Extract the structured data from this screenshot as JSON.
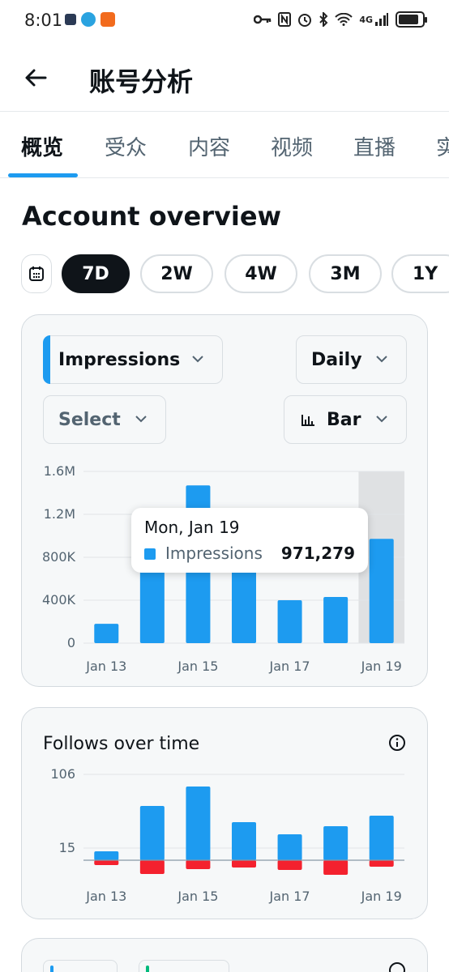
{
  "status_bar": {
    "time": "8:01",
    "network": "4G",
    "battery_level": 0.85
  },
  "header": {
    "title": "账号分析"
  },
  "tabs": [
    {
      "label": "概览",
      "active": true
    },
    {
      "label": "受众",
      "active": false
    },
    {
      "label": "内容",
      "active": false
    },
    {
      "label": "视频",
      "active": false
    },
    {
      "label": "直播",
      "active": false
    },
    {
      "label": "实",
      "active": false
    }
  ],
  "overview": {
    "title": "Account overview",
    "periods": [
      {
        "label": "7D",
        "active": true
      },
      {
        "label": "2W",
        "active": false
      },
      {
        "label": "4W",
        "active": false
      },
      {
        "label": "3M",
        "active": false
      },
      {
        "label": "1Y",
        "active": false
      }
    ],
    "metric_select": "Impressions",
    "interval_select": "Daily",
    "compare_select": "Select",
    "chart_type_select": "Bar",
    "tooltip": {
      "date": "Mon, Jan 19",
      "series": "Impressions",
      "value": "971,279"
    }
  },
  "follows": {
    "title": "Follows over time"
  },
  "colors": {
    "accent": "#1d9bf0",
    "negative": "#f4212e",
    "highlight": "#dfe1e3"
  },
  "chart_data": [
    {
      "type": "bar",
      "title": "",
      "series": [
        {
          "name": "Impressions",
          "values": [
            180000,
            940000,
            1470000,
            1000000,
            400000,
            430000,
            971279
          ]
        }
      ],
      "categories": [
        "Jan 13",
        "Jan 14",
        "Jan 15",
        "Jan 16",
        "Jan 17",
        "Jan 18",
        "Jan 19"
      ],
      "x_tick_labels": [
        "Jan 13",
        "Jan 15",
        "Jan 17",
        "Jan 19"
      ],
      "y_ticks": [
        "0",
        "400K",
        "800K",
        "1.2M",
        "1.6M"
      ],
      "ylim": [
        0,
        1600000
      ],
      "highlighted_category": "Jan 19",
      "grid": true
    },
    {
      "type": "bar",
      "title": "Follows over time",
      "categories": [
        "Jan 13",
        "Jan 14",
        "Jan 15",
        "Jan 16",
        "Jan 17",
        "Jan 18",
        "Jan 19"
      ],
      "series": [
        {
          "values": [
            11,
            67,
            91,
            47,
            32,
            42,
            55
          ]
        },
        {
          "values": [
            -6,
            -17,
            -11,
            -9,
            -12,
            -18,
            -8
          ]
        }
      ],
      "x_tick_labels": [
        "Jan 13",
        "Jan 15",
        "Jan 17",
        "Jan 19"
      ],
      "y_ticks": [
        "15",
        "106"
      ],
      "grid": true
    }
  ]
}
